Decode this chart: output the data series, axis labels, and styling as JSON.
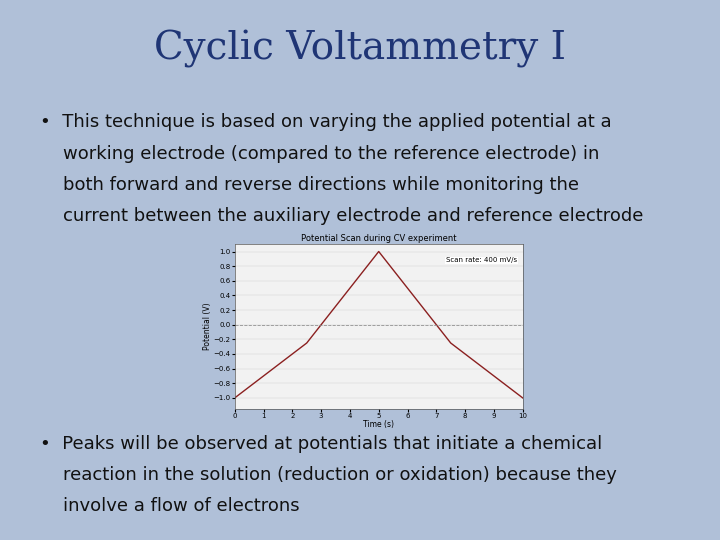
{
  "title": "Cyclic Voltammetry I",
  "title_color": "#1f3575",
  "bg_color": "#b0c0d8",
  "chart_title": "Potential Scan during CV experiment",
  "chart_xlabel": "Time (s)",
  "chart_ylabel": "Potential (V)",
  "scan_rate_text": "Scan rate: 400 mV/s",
  "chart_x": [
    0,
    2.5,
    5,
    7.5,
    10
  ],
  "chart_y": [
    -1,
    -0.25,
    1,
    -0.25,
    -1
  ],
  "chart_line_color": "#8b2020",
  "chart_bg_color": "#f2f2f2",
  "chart_xlim": [
    0,
    10
  ],
  "chart_ylim": [
    -1.15,
    1.1
  ],
  "chart_xticks": [
    0,
    1,
    2,
    3,
    4,
    5,
    6,
    7,
    8,
    9,
    10
  ],
  "chart_yticks": [
    -1,
    -0.8,
    -0.6,
    -0.4,
    -0.2,
    0,
    0.2,
    0.4,
    0.6,
    0.8,
    1
  ],
  "text_color": "#111111",
  "bullet_fontsize": 13.0,
  "title_fontsize": 28,
  "bullet1_lines": [
    "•  This technique is based on varying the applied potential at a",
    "    working electrode (compared to the reference electrode) in",
    "    both forward and reverse directions while monitoring the",
    "    current between the auxiliary electrode and reference electrode"
  ],
  "bullet2_lines": [
    "•  Peaks will be observed at potentials that initiate a chemical",
    "    reaction in the solution (reduction or oxidation) because they",
    "    involve a flow of electrons"
  ]
}
